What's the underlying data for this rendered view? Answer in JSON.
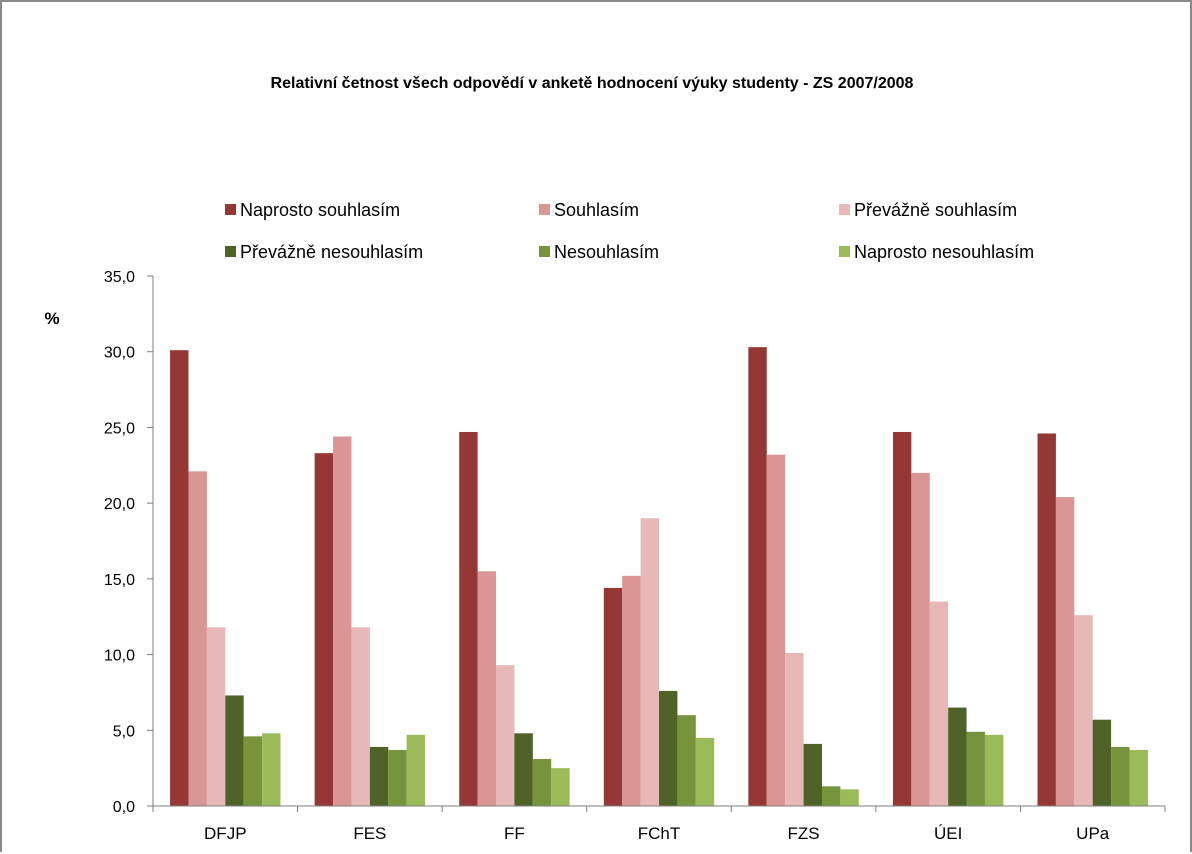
{
  "chart_data": {
    "type": "bar",
    "title": "Relativní četnost všech odpovědí v anketě hodnocení  výuky studenty - ZS 2007/2008",
    "ylabel": "%",
    "xlabel": "",
    "ylim": [
      0,
      35
    ],
    "yticks": [
      0,
      5,
      10,
      15,
      20,
      25,
      30,
      35
    ],
    "ytick_labels": [
      "0,0",
      "5,0",
      "10,0",
      "15,0",
      "20,0",
      "25,0",
      "30,0",
      "35,0"
    ],
    "grid": false,
    "legend_position": "top",
    "categories": [
      "DFJP",
      "FES",
      "FF",
      "FChT",
      "FZS",
      "ÚEI",
      "UPa"
    ],
    "series": [
      {
        "name": "Naprosto souhlasím",
        "color": "#953735",
        "values": [
          30.1,
          23.3,
          24.7,
          14.4,
          30.3,
          24.7,
          24.6
        ]
      },
      {
        "name": "Souhlasím",
        "color": "#d99694",
        "values": [
          22.1,
          24.4,
          15.5,
          15.2,
          23.2,
          22.0,
          20.4
        ]
      },
      {
        "name": "Převážně souhlasím",
        "color": "#e6b9b8",
        "values": [
          11.8,
          11.8,
          9.3,
          19.0,
          10.1,
          13.5,
          12.6
        ]
      },
      {
        "name": "Převážně nesouhlasím",
        "color": "#4f6228",
        "values": [
          7.3,
          3.9,
          4.8,
          7.6,
          4.1,
          6.5,
          5.7
        ]
      },
      {
        "name": "Nesouhlasím",
        "color": "#77933c",
        "values": [
          4.6,
          3.7,
          3.1,
          6.0,
          1.3,
          4.9,
          3.9
        ]
      },
      {
        "name": "Naprosto nesouhlasím",
        "color": "#9bbb59",
        "values": [
          4.8,
          4.7,
          2.5,
          4.5,
          1.1,
          4.7,
          3.7
        ]
      }
    ]
  }
}
